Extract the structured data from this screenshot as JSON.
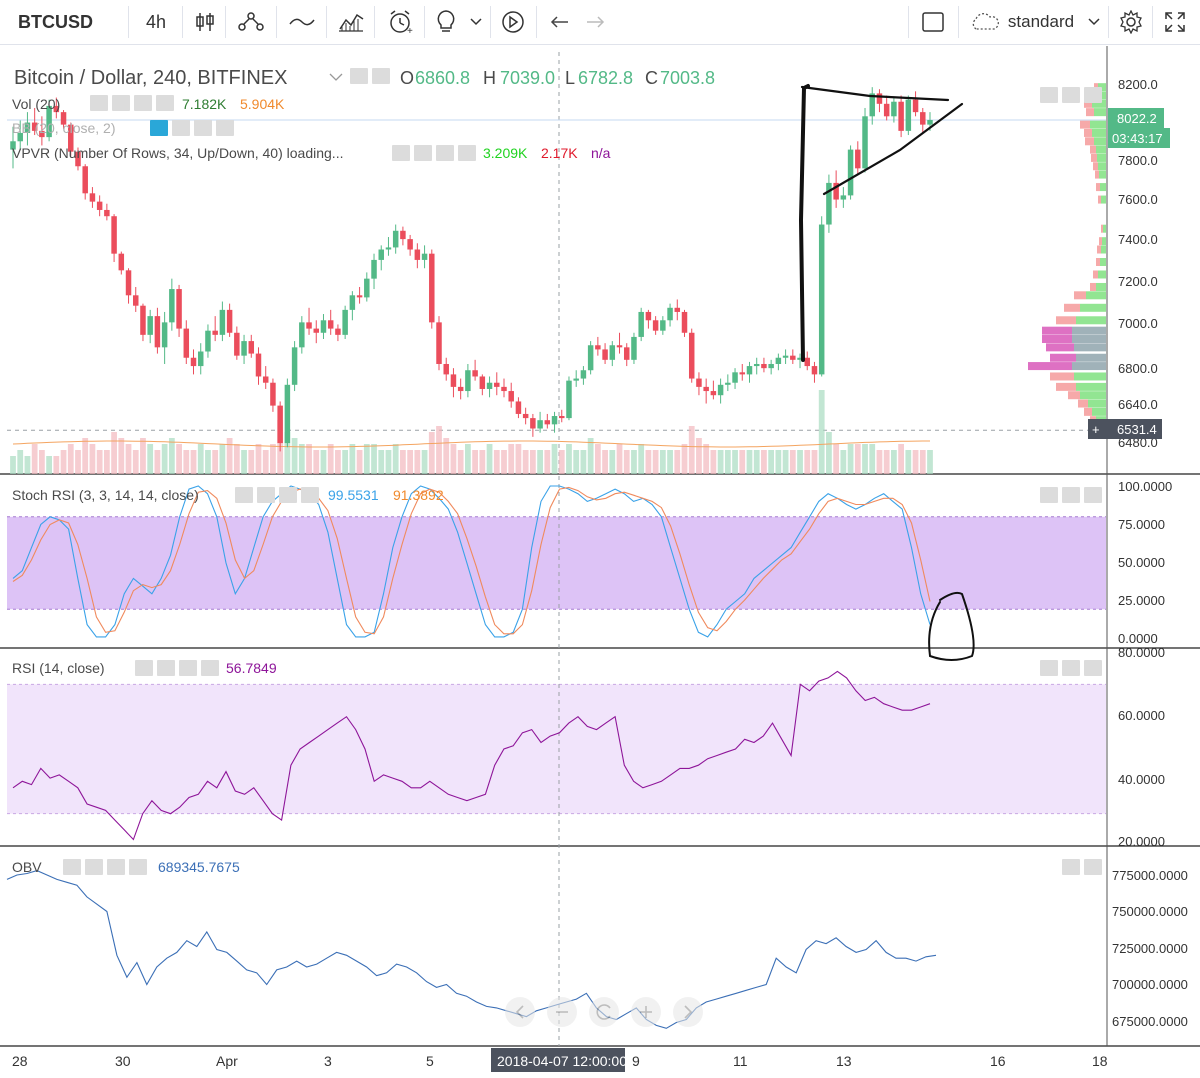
{
  "toolbar": {
    "symbol": "BTCUSD",
    "interval": "4h",
    "icons": [
      "candles-icon",
      "indicators-icon",
      "line-tool-icon",
      "fib-icon",
      "alert-icon",
      "idea-icon",
      "chevron-down-icon",
      "replay-icon",
      "undo-icon",
      "redo-icon"
    ],
    "layout_icon": "square-icon",
    "layout_name": "standard",
    "settings_icon": "gear-icon",
    "fullscreen_icon": "fullscreen-icon"
  },
  "legend": {
    "title": "Bitcoin / Dollar, 240, BITFINEX",
    "o_label": "O",
    "o_val": "6860.8",
    "h_label": "H",
    "h_val": "7039.0",
    "l_label": "L",
    "l_val": "6782.8",
    "c_label": "C",
    "c_val": "7003.8",
    "vol_name": "Vol (20)",
    "vol_v1": "7.182K",
    "vol_v2": "5.904K",
    "bb_name": "BB (20, close, 2)",
    "vpvr_name": "VPVR (Number Of Rows, 34, Up/Down, 40) loading...",
    "vpvr_v1": "3.209K",
    "vpvr_v2": "2.17K",
    "vpvr_v3": "n/a",
    "stoch_name": "Stoch RSI (3, 3, 14, 14, close)",
    "stoch_v1": "99.5531",
    "stoch_v2": "91.3892",
    "rsi_name": "RSI (14, close)",
    "rsi_v1": "56.7849",
    "obv_name": "OBV",
    "obv_v1": "689345.7675"
  },
  "price_axis": {
    "ticks": [
      "8200.0",
      "8000.0",
      "7800.0",
      "7600.0",
      "7400.0",
      "7200.0",
      "7000.0",
      "6800.0",
      "6640.0",
      "6480.0"
    ],
    "last_price": "8022.2",
    "countdown": "03:43:17",
    "crosshair_price": "6531.4"
  },
  "stoch_axis": {
    "ticks": [
      "100.0000",
      "75.0000",
      "50.0000",
      "25.0000",
      "0.0000"
    ]
  },
  "rsi_axis": {
    "ticks": [
      "80.0000",
      "60.0000",
      "40.0000",
      "20.0000"
    ]
  },
  "obv_axis": {
    "ticks": [
      "775000.0000",
      "750000.0000",
      "725000.0000",
      "700000.0000",
      "675000.0000"
    ]
  },
  "time_axis": {
    "ticks": [
      "28",
      "30",
      "Apr",
      "3",
      "5",
      "9",
      "11",
      "13",
      "16",
      "18"
    ],
    "crosshair_time": "2018-04-07 12:00:00"
  },
  "colors": {
    "up": "#53b987",
    "down": "#eb4d5c",
    "stoch_k": "#3aa2e8",
    "stoch_d": "#f08a5d",
    "rsi": "#8e1599",
    "obv": "#3b6fb6",
    "band": "#d7b8f5",
    "rsi_band": "#f1e4fb"
  },
  "chart_data": {
    "type": "candlestick",
    "symbol": "Bitcoin / Dollar, 240, BITFINEX",
    "ylim": [
      6400,
      8280
    ],
    "candles": [
      [
        7880,
        7990,
        7790,
        7920
      ],
      [
        7920,
        8020,
        7880,
        7960
      ],
      [
        7960,
        8060,
        7900,
        8010
      ],
      [
        8010,
        8080,
        7950,
        7970
      ],
      [
        7970,
        8040,
        7900,
        7940
      ],
      [
        7940,
        8120,
        7920,
        8090
      ],
      [
        8090,
        8130,
        8030,
        8060
      ],
      [
        8060,
        8070,
        7980,
        8000
      ],
      [
        8000,
        8010,
        7850,
        7870
      ],
      [
        7870,
        7890,
        7780,
        7800
      ],
      [
        7800,
        7810,
        7640,
        7670
      ],
      [
        7670,
        7700,
        7600,
        7630
      ],
      [
        7630,
        7660,
        7560,
        7590
      ],
      [
        7590,
        7620,
        7540,
        7560
      ],
      [
        7560,
        7570,
        7340,
        7380
      ],
      [
        7380,
        7390,
        7280,
        7300
      ],
      [
        7300,
        7310,
        7140,
        7180
      ],
      [
        7180,
        7220,
        7100,
        7130
      ],
      [
        7130,
        7140,
        6960,
        6990
      ],
      [
        6990,
        7110,
        6950,
        7080
      ],
      [
        7080,
        7120,
        6900,
        6930
      ],
      [
        6930,
        7100,
        6850,
        7050
      ],
      [
        7050,
        7260,
        7010,
        7210
      ],
      [
        7210,
        7230,
        6980,
        7020
      ],
      [
        7020,
        7060,
        6850,
        6880
      ],
      [
        6880,
        6920,
        6800,
        6840
      ],
      [
        6840,
        6950,
        6800,
        6910
      ],
      [
        6910,
        7040,
        6880,
        7010
      ],
      [
        7010,
        7080,
        6960,
        6990
      ],
      [
        6990,
        7150,
        6960,
        7110
      ],
      [
        7110,
        7140,
        6980,
        7000
      ],
      [
        7000,
        7030,
        6870,
        6890
      ],
      [
        6890,
        6990,
        6850,
        6960
      ],
      [
        6960,
        6990,
        6880,
        6900
      ],
      [
        6900,
        6930,
        6750,
        6790
      ],
      [
        6790,
        6840,
        6730,
        6760
      ],
      [
        6760,
        6780,
        6620,
        6650
      ],
      [
        6650,
        6670,
        6430,
        6470
      ],
      [
        6470,
        6780,
        6450,
        6750
      ],
      [
        6750,
        6960,
        6720,
        6930
      ],
      [
        6930,
        7080,
        6900,
        7050
      ],
      [
        7050,
        7120,
        6990,
        7020
      ],
      [
        7020,
        7060,
        6950,
        7000
      ],
      [
        7000,
        7090,
        6970,
        7060
      ],
      [
        7060,
        7110,
        6990,
        7020
      ],
      [
        7020,
        7040,
        6960,
        6990
      ],
      [
        6990,
        7130,
        6970,
        7110
      ],
      [
        7110,
        7200,
        7060,
        7180
      ],
      [
        7180,
        7220,
        7140,
        7170
      ],
      [
        7170,
        7290,
        7150,
        7260
      ],
      [
        7260,
        7380,
        7210,
        7350
      ],
      [
        7350,
        7420,
        7300,
        7400
      ],
      [
        7400,
        7460,
        7370,
        7410
      ],
      [
        7410,
        7520,
        7380,
        7490
      ],
      [
        7490,
        7510,
        7420,
        7450
      ],
      [
        7450,
        7470,
        7370,
        7400
      ],
      [
        7400,
        7430,
        7310,
        7350
      ],
      [
        7350,
        7420,
        7310,
        7380
      ],
      [
        7380,
        7400,
        7020,
        7050
      ],
      [
        7050,
        7080,
        6820,
        6850
      ],
      [
        6850,
        6880,
        6770,
        6800
      ],
      [
        6800,
        6830,
        6690,
        6740
      ],
      [
        6740,
        6780,
        6680,
        6720
      ],
      [
        6720,
        6850,
        6690,
        6820
      ],
      [
        6820,
        6870,
        6770,
        6790
      ],
      [
        6790,
        6800,
        6700,
        6730
      ],
      [
        6730,
        6790,
        6690,
        6760
      ],
      [
        6760,
        6810,
        6700,
        6740
      ],
      [
        6740,
        6780,
        6690,
        6720
      ],
      [
        6720,
        6760,
        6640,
        6670
      ],
      [
        6670,
        6690,
        6590,
        6610
      ],
      [
        6610,
        6640,
        6560,
        6590
      ],
      [
        6590,
        6610,
        6500,
        6540
      ],
      [
        6540,
        6620,
        6520,
        6580
      ],
      [
        6580,
        6610,
        6540,
        6560
      ],
      [
        6560,
        6620,
        6520,
        6600
      ],
      [
        6600,
        6630,
        6570,
        6590
      ],
      [
        6590,
        6790,
        6580,
        6770
      ],
      [
        6770,
        6820,
        6740,
        6780
      ],
      [
        6780,
        6840,
        6750,
        6820
      ],
      [
        6820,
        6960,
        6800,
        6940
      ],
      [
        6940,
        6980,
        6890,
        6920
      ],
      [
        6920,
        6950,
        6850,
        6870
      ],
      [
        6870,
        6960,
        6840,
        6940
      ],
      [
        6940,
        7000,
        6900,
        6930
      ],
      [
        6930,
        6950,
        6840,
        6870
      ],
      [
        6870,
        7000,
        6850,
        6980
      ],
      [
        6980,
        7120,
        6960,
        7100
      ],
      [
        7100,
        7110,
        7020,
        7060
      ],
      [
        7060,
        7080,
        6990,
        7010
      ],
      [
        7010,
        7080,
        6990,
        7060
      ],
      [
        7060,
        7140,
        7030,
        7120
      ],
      [
        7120,
        7160,
        7060,
        7100
      ],
      [
        7100,
        7110,
        6980,
        7000
      ],
      [
        7000,
        7020,
        6760,
        6780
      ],
      [
        6780,
        6810,
        6700,
        6740
      ],
      [
        6740,
        6780,
        6660,
        6720
      ],
      [
        6720,
        6770,
        6680,
        6700
      ],
      [
        6700,
        6780,
        6660,
        6750
      ],
      [
        6750,
        6800,
        6720,
        6760
      ],
      [
        6760,
        6830,
        6730,
        6810
      ],
      [
        6810,
        6850,
        6770,
        6800
      ],
      [
        6800,
        6860,
        6760,
        6840
      ],
      [
        6840,
        6880,
        6800,
        6850
      ],
      [
        6850,
        6880,
        6810,
        6830
      ],
      [
        6830,
        6870,
        6800,
        6850
      ],
      [
        6850,
        6900,
        6820,
        6880
      ],
      [
        6880,
        6920,
        6850,
        6890
      ],
      [
        6890,
        6920,
        6850,
        6870
      ],
      [
        6870,
        6900,
        6830,
        6880
      ],
      [
        6880,
        6910,
        6820,
        6840
      ],
      [
        6840,
        6860,
        6760,
        6800
      ],
      [
        6800,
        7560,
        6790,
        7520
      ],
      [
        7520,
        7760,
        7480,
        7720
      ],
      [
        7720,
        7780,
        7600,
        7640
      ],
      [
        7640,
        7700,
        7600,
        7660
      ],
      [
        7660,
        7900,
        7640,
        7880
      ],
      [
        7880,
        7920,
        7760,
        7790
      ],
      [
        7790,
        8080,
        7770,
        8040
      ],
      [
        8040,
        8180,
        8000,
        8150
      ],
      [
        8150,
        8170,
        8060,
        8100
      ],
      [
        8100,
        8140,
        8020,
        8040
      ],
      [
        8040,
        8130,
        8010,
        8110
      ],
      [
        8110,
        8140,
        7940,
        7970
      ],
      [
        7970,
        8140,
        7950,
        8120
      ],
      [
        8120,
        8160,
        8040,
        8060
      ],
      [
        8060,
        8080,
        7960,
        8000
      ],
      [
        8000,
        8060,
        7970,
        8022.2
      ]
    ],
    "volume": [
      3,
      4,
      3,
      5,
      4,
      3,
      3,
      4,
      5,
      4,
      6,
      5,
      4,
      4,
      7,
      6,
      5,
      4,
      6,
      5,
      4,
      5,
      6,
      5,
      4,
      4,
      5,
      4,
      4,
      5,
      6,
      5,
      4,
      4,
      5,
      4,
      5,
      9,
      7,
      6,
      5,
      5,
      4,
      4,
      5,
      4,
      4,
      5,
      4,
      5,
      5,
      4,
      4,
      5,
      4,
      4,
      4,
      4,
      7,
      8,
      6,
      5,
      4,
      5,
      4,
      4,
      5,
      4,
      4,
      5,
      5,
      4,
      4,
      4,
      4,
      5,
      4,
      5,
      4,
      4,
      6,
      5,
      4,
      4,
      5,
      4,
      4,
      5,
      4,
      4,
      4,
      4,
      4,
      5,
      8,
      6,
      5,
      4,
      4,
      4,
      4,
      4,
      4,
      4,
      4,
      4,
      4,
      4,
      4,
      4,
      4,
      4,
      14,
      7,
      5,
      4,
      5,
      5,
      5,
      5,
      4,
      4,
      4,
      5,
      4,
      4,
      4,
      4
    ],
    "stoch_k": [
      40,
      45,
      60,
      75,
      80,
      78,
      72,
      40,
      10,
      2,
      2,
      10,
      30,
      40,
      35,
      30,
      40,
      55,
      80,
      98,
      100,
      95,
      80,
      50,
      30,
      40,
      60,
      80,
      90,
      95,
      100,
      98,
      95,
      88,
      70,
      40,
      10,
      2,
      2,
      5,
      30,
      60,
      80,
      95,
      100,
      98,
      92,
      85,
      70,
      50,
      30,
      10,
      2,
      2,
      5,
      20,
      60,
      90,
      100,
      100,
      98,
      95,
      90,
      92,
      95,
      98,
      95,
      90,
      92,
      88,
      80,
      60,
      40,
      20,
      5,
      2,
      10,
      20,
      25,
      30,
      40,
      45,
      50,
      55,
      60,
      70,
      80,
      90,
      95,
      92,
      88,
      85,
      88,
      92,
      95,
      90,
      85,
      60,
      30,
      10
    ],
    "stoch_d": [
      38,
      42,
      52,
      65,
      75,
      78,
      76,
      62,
      40,
      15,
      5,
      6,
      18,
      32,
      36,
      34,
      36,
      45,
      62,
      82,
      96,
      97,
      92,
      76,
      52,
      40,
      45,
      62,
      80,
      90,
      96,
      98,
      97,
      92,
      84,
      66,
      40,
      15,
      5,
      4,
      15,
      40,
      62,
      82,
      95,
      98,
      96,
      90,
      82,
      66,
      48,
      28,
      10,
      4,
      4,
      10,
      32,
      62,
      86,
      98,
      99,
      97,
      93,
      91,
      92,
      95,
      96,
      94,
      92,
      90,
      86,
      74,
      56,
      36,
      18,
      8,
      6,
      12,
      20,
      26,
      33,
      40,
      46,
      52,
      56,
      64,
      72,
      82,
      90,
      92,
      90,
      88,
      88,
      90,
      92,
      92,
      88,
      76,
      52,
      25
    ],
    "rsi": [
      38,
      40,
      39,
      44,
      41,
      42,
      40,
      38,
      33,
      32,
      31,
      28,
      25,
      22,
      30,
      34,
      31,
      30,
      32,
      35,
      36,
      40,
      38,
      43,
      37,
      36,
      38,
      34,
      30,
      28,
      45,
      50,
      52,
      54,
      56,
      58,
      60,
      56,
      50,
      40,
      42,
      41,
      40,
      38,
      38,
      40,
      38,
      36,
      35,
      34,
      35,
      36,
      45,
      50,
      51,
      55,
      56,
      52,
      54,
      55,
      58,
      60,
      57,
      56,
      58,
      60,
      45,
      40,
      38,
      39,
      40,
      42,
      44,
      44,
      45,
      47,
      48,
      49,
      50,
      53,
      52,
      54,
      58,
      53,
      48,
      70,
      68,
      71,
      72,
      74,
      72,
      68,
      65,
      66,
      64,
      63,
      62,
      62,
      63,
      64
    ],
    "obv": [
      772,
      775,
      776,
      778,
      775,
      772,
      770,
      768,
      760,
      755,
      750,
      720,
      705,
      715,
      700,
      712,
      718,
      722,
      730,
      726,
      736,
      724,
      722,
      716,
      710,
      708,
      700,
      710,
      712,
      716,
      712,
      714,
      718,
      722,
      720,
      716,
      712,
      706,
      708,
      714,
      712,
      708,
      702,
      698,
      700,
      694,
      692,
      688,
      685,
      684,
      682,
      680,
      678,
      682,
      684,
      686,
      688,
      690,
      694,
      684,
      678,
      676,
      680,
      684,
      676,
      672,
      670,
      674,
      676,
      684,
      688,
      690,
      692,
      694,
      696,
      698,
      700,
      718,
      712,
      708,
      724,
      730,
      728,
      732,
      726,
      722,
      724,
      730,
      722,
      718,
      718,
      716,
      719,
      720
    ]
  }
}
